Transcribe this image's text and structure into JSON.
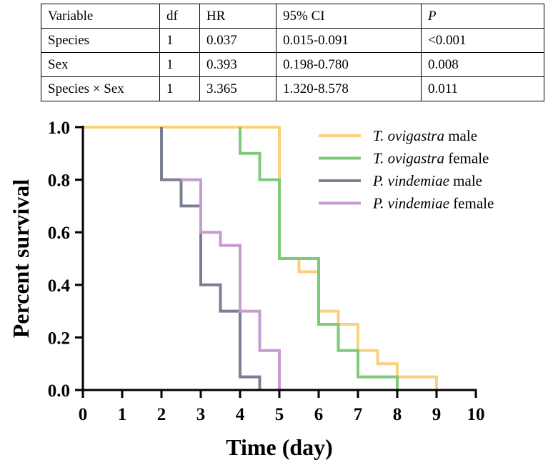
{
  "table": {
    "headers": [
      "Variable",
      "df",
      "HR",
      "95% CI",
      "P"
    ],
    "rows": [
      [
        "Species",
        "1",
        "0.037",
        "0.015-0.091",
        "<0.001"
      ],
      [
        "Sex",
        "1",
        "0.393",
        "0.198-0.780",
        "0.008"
      ],
      [
        "Species × Sex",
        "1",
        "3.365",
        "1.320-8.578",
        "0.011"
      ]
    ]
  },
  "chart_data": {
    "type": "line",
    "subtype": "kaplan-meier step",
    "title": "",
    "xlabel": "Time (day)",
    "ylabel": "Percent survival",
    "xlim": [
      0,
      10
    ],
    "ylim": [
      0,
      1
    ],
    "xticks": [
      0,
      1,
      2,
      3,
      4,
      5,
      6,
      7,
      8,
      9,
      10
    ],
    "xtick_labels": [
      "0",
      "1",
      "2",
      "3",
      "4",
      "5",
      "6",
      "7",
      "8",
      "9",
      "10"
    ],
    "yticks": [
      0,
      0.2,
      0.4,
      0.6,
      0.8,
      1.0
    ],
    "ytick_labels": [
      "0.0",
      "0.2",
      "0.4",
      "0.6",
      "0.8",
      "1.0"
    ],
    "grid": false,
    "legend_position": "top-right",
    "series": [
      {
        "name_italic": "T. ovigastra",
        "name_suffix": " male",
        "color": "#f9d17e",
        "points": [
          [
            0,
            1.0
          ],
          [
            5,
            1.0
          ],
          [
            5,
            0.5
          ],
          [
            5.5,
            0.5
          ],
          [
            5.5,
            0.45
          ],
          [
            6,
            0.45
          ],
          [
            6,
            0.3
          ],
          [
            6.5,
            0.3
          ],
          [
            6.5,
            0.25
          ],
          [
            7,
            0.25
          ],
          [
            7,
            0.15
          ],
          [
            7.5,
            0.15
          ],
          [
            7.5,
            0.1
          ],
          [
            8,
            0.1
          ],
          [
            8,
            0.05
          ],
          [
            9,
            0.05
          ],
          [
            9,
            0.0
          ]
        ]
      },
      {
        "name_italic": "T. ovigastra",
        "name_suffix": " female",
        "color": "#7fc97a",
        "points": [
          [
            4,
            1.0
          ],
          [
            4,
            0.9
          ],
          [
            4.5,
            0.9
          ],
          [
            4.5,
            0.8
          ],
          [
            5,
            0.8
          ],
          [
            5,
            0.5
          ],
          [
            6,
            0.5
          ],
          [
            6,
            0.25
          ],
          [
            6.5,
            0.25
          ],
          [
            6.5,
            0.15
          ],
          [
            7,
            0.15
          ],
          [
            7,
            0.05
          ],
          [
            8,
            0.05
          ],
          [
            8,
            0.0
          ]
        ]
      },
      {
        "name_italic": "P. vindemiae",
        "name_suffix": " male",
        "color": "#7b7f92",
        "points": [
          [
            2,
            1.0
          ],
          [
            2,
            0.8
          ],
          [
            2.5,
            0.8
          ],
          [
            2.5,
            0.7
          ],
          [
            3,
            0.7
          ],
          [
            3,
            0.4
          ],
          [
            3.5,
            0.4
          ],
          [
            3.5,
            0.3
          ],
          [
            4,
            0.3
          ],
          [
            4,
            0.05
          ],
          [
            4.5,
            0.05
          ],
          [
            4.5,
            0.0
          ]
        ]
      },
      {
        "name_italic": "P. vindemiae",
        "name_suffix": " female",
        "color": "#c49ccf",
        "points": [
          [
            2.5,
            0.8
          ],
          [
            3,
            0.8
          ],
          [
            3,
            0.6
          ],
          [
            3.5,
            0.6
          ],
          [
            3.5,
            0.55
          ],
          [
            4,
            0.55
          ],
          [
            4,
            0.3
          ],
          [
            4.5,
            0.3
          ],
          [
            4.5,
            0.15
          ],
          [
            5,
            0.15
          ],
          [
            5,
            0.0
          ]
        ]
      }
    ]
  }
}
